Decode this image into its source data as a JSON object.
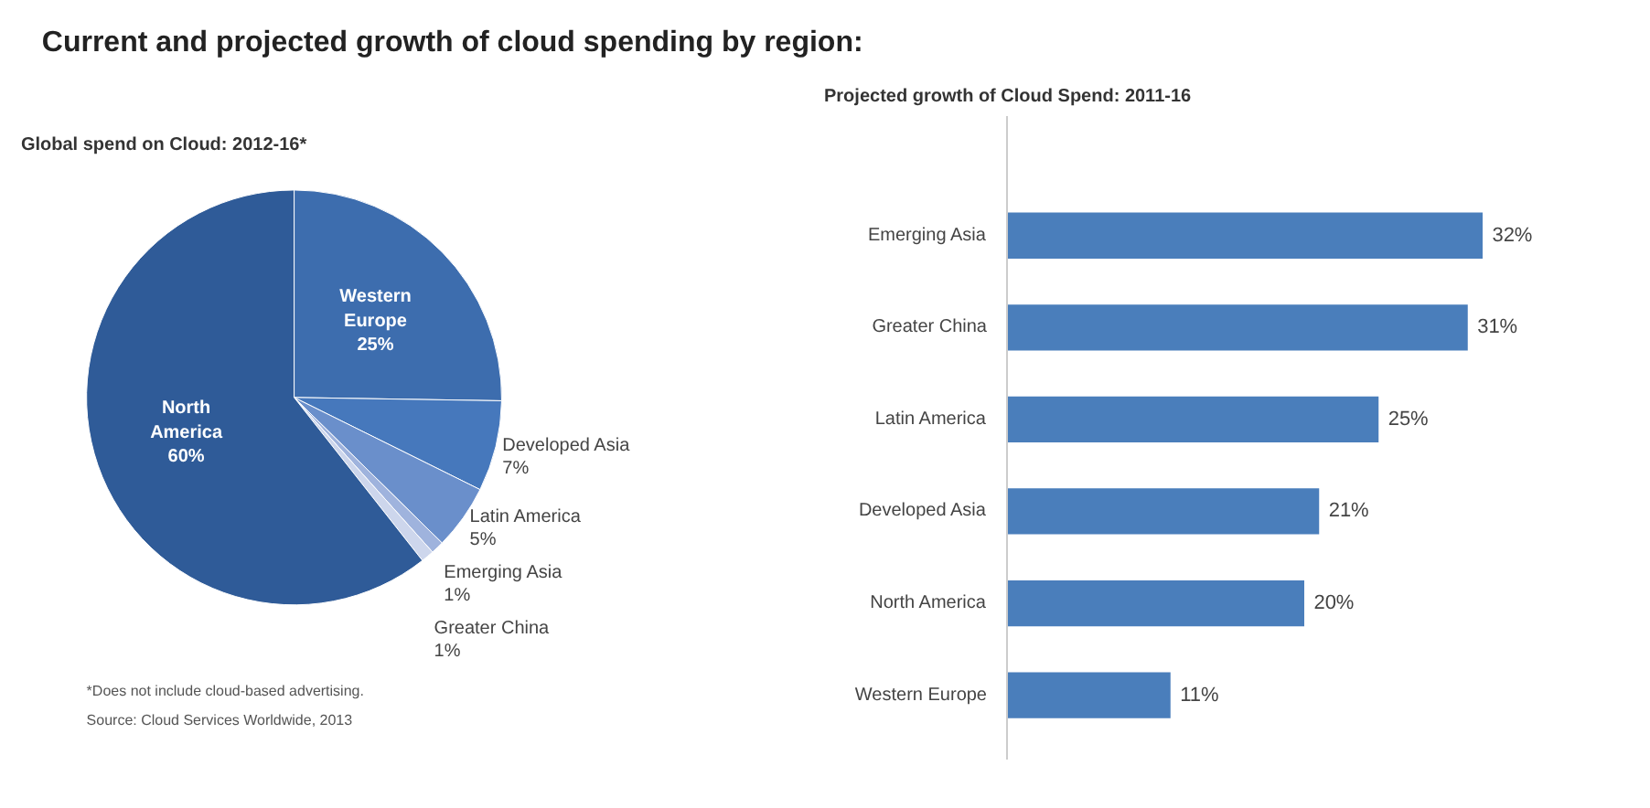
{
  "chart_data": [
    {
      "type": "pie",
      "title": "Current and projected growth of cloud spending by region:",
      "subtitle": "Global spend on Cloud: 2012-16*",
      "categories": [
        "Western Europe",
        "Developed Asia",
        "Latin America",
        "Emerging Asia",
        "Greater China",
        "North America"
      ],
      "values": [
        25,
        7,
        5,
        1,
        1,
        60
      ],
      "value_labels": [
        "25%",
        "7%",
        "5%",
        "1%",
        "1%",
        "60%"
      ],
      "colors": [
        "#3d6dae",
        "#4678bc",
        "#6a8fcb",
        "#9fb3dd",
        "#cdd6ec",
        "#2f5b98"
      ],
      "annotations": [
        "*Does not include cloud-based advertising.",
        "Source: Cloud Services Worldwide, 2013"
      ]
    },
    {
      "type": "bar",
      "orientation": "horizontal",
      "subtitle": "Projected growth of Cloud Spend: 2011-16",
      "categories": [
        "Emerging Asia",
        "Greater China",
        "Latin America",
        "Developed Asia",
        "North America",
        "Western Europe"
      ],
      "values": [
        32,
        31,
        25,
        21,
        20,
        11
      ],
      "value_labels": [
        "32%",
        "31%",
        "25%",
        "21%",
        "20%",
        "11%"
      ],
      "color": "#4a7ebb"
    }
  ]
}
